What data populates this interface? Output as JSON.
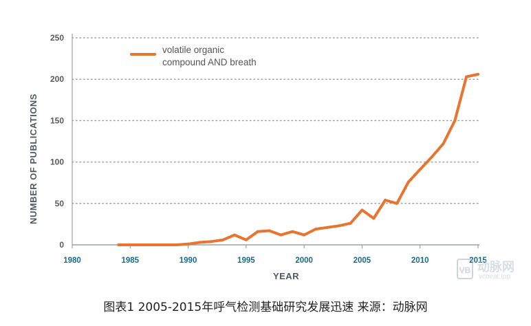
{
  "chart_data": {
    "type": "line",
    "xlabel": "YEAR",
    "ylabel": "NUMBER OF PUBLICATIONS",
    "xlim": [
      1980,
      2015
    ],
    "ylim": [
      0,
      250
    ],
    "x_ticks": [
      1980,
      1985,
      1990,
      1995,
      2000,
      2005,
      2010,
      2015
    ],
    "y_ticks": [
      0,
      50,
      100,
      150,
      200,
      250
    ],
    "grid": "horizontal dotted",
    "legend_position": "top-left",
    "series": [
      {
        "name": "volatile organic compound AND breath",
        "legend_lines": [
          "volatile organic",
          "compound AND breath"
        ],
        "color": "#e8742f",
        "x": [
          1984,
          1985,
          1986,
          1987,
          1988,
          1989,
          1990,
          1991,
          1992,
          1993,
          1994,
          1995,
          1996,
          1997,
          1998,
          1999,
          2000,
          2001,
          2002,
          2003,
          2004,
          2005,
          2006,
          2007,
          2008,
          2009,
          2010,
          2011,
          2012,
          2013,
          2014,
          2015
        ],
        "y": [
          0,
          0,
          0,
          0,
          0,
          0,
          1,
          3,
          4,
          6,
          12,
          6,
          16,
          17,
          12,
          16,
          12,
          19,
          21,
          23,
          26,
          42,
          32,
          54,
          50,
          76,
          91,
          106,
          122,
          150,
          203,
          206
        ]
      }
    ]
  },
  "caption": "图表1 2005-2015年呼气检测基础研究发展迅速 来源：动脉网",
  "watermark": {
    "logo": "VB",
    "name": "动脉网",
    "url": "vcbeat.top"
  }
}
